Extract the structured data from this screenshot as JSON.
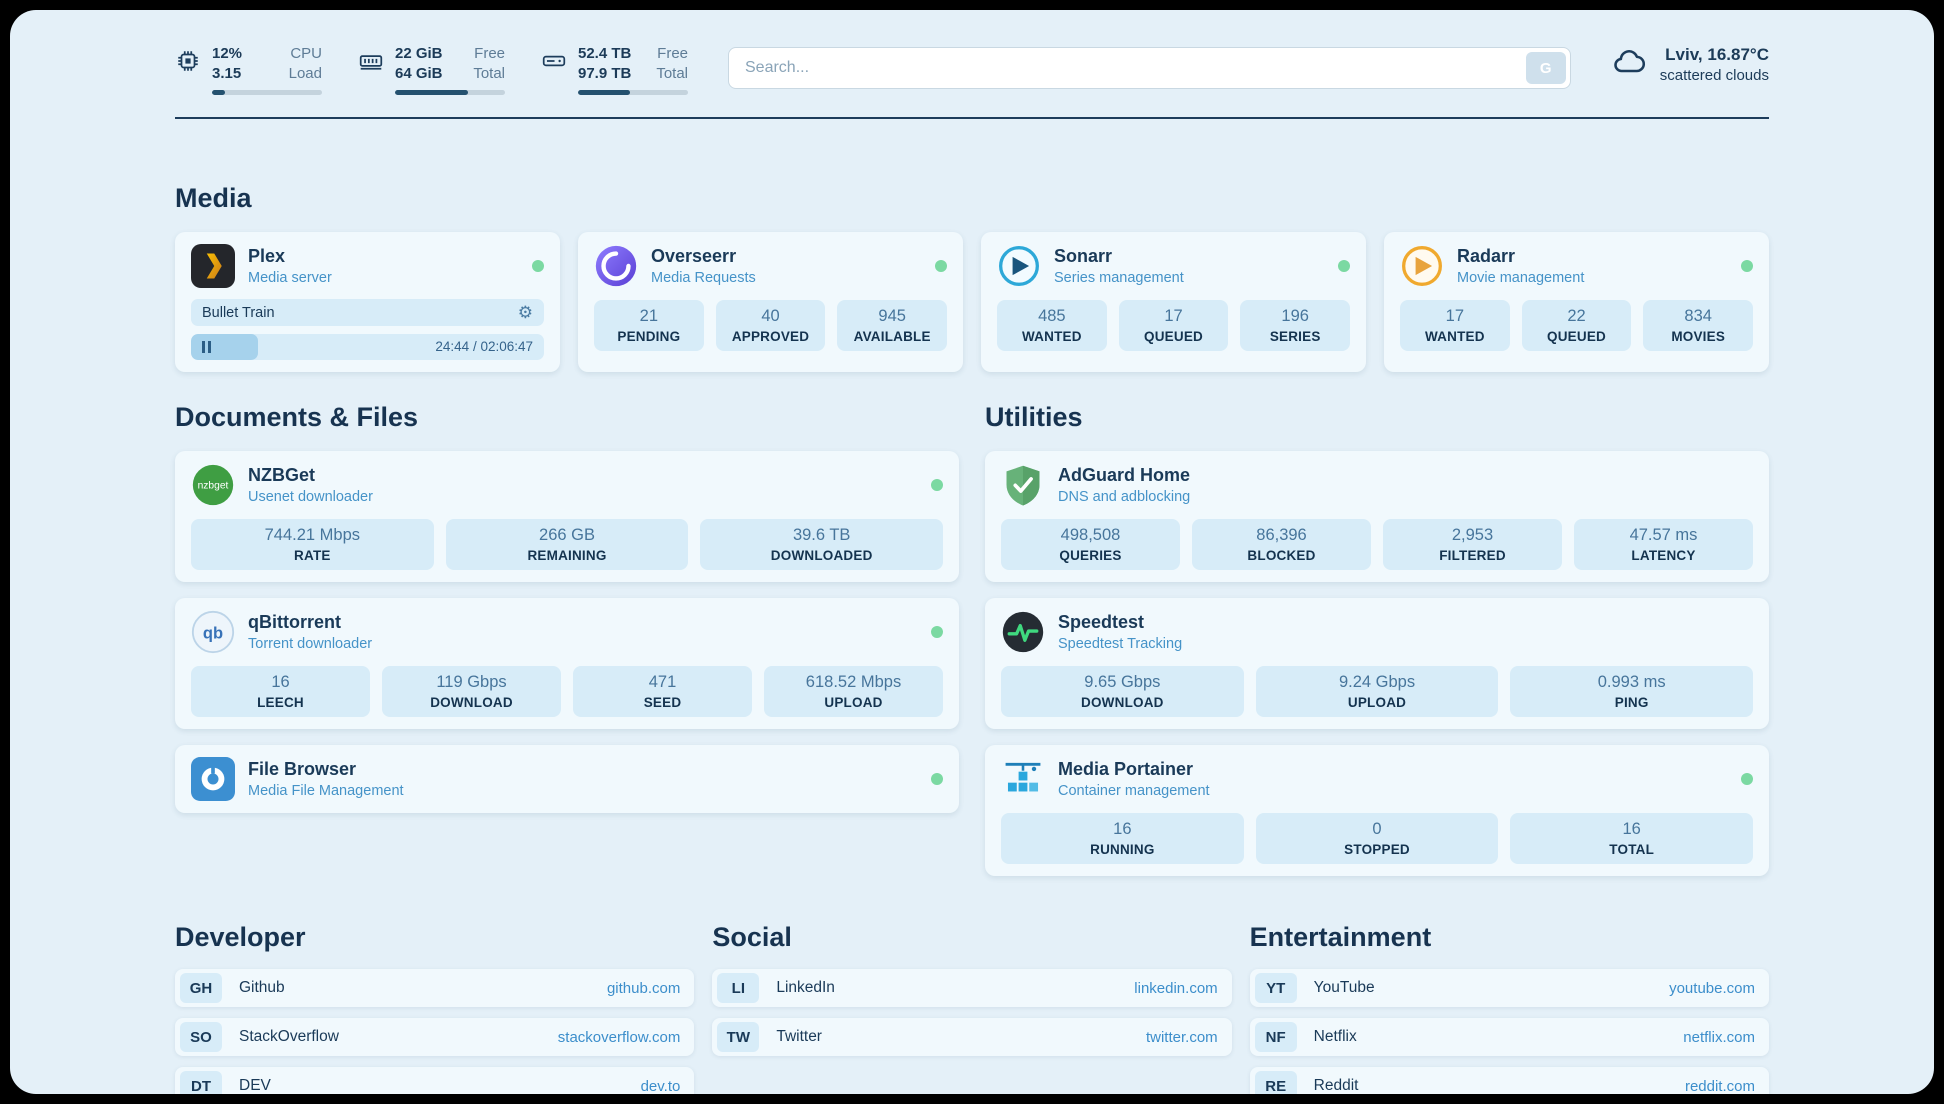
{
  "topbar": {
    "cpu": {
      "value1": "12%",
      "label1": "CPU",
      "value2": "3.15",
      "label2": "Load",
      "percent": 12
    },
    "ram": {
      "value1": "22 GiB",
      "label1": "Free",
      "value2": "64 GiB",
      "label2": "Total",
      "percent": 66
    },
    "disk": {
      "value1": "52.4 TB",
      "label1": "Free",
      "value2": "97.9 TB",
      "label2": "Total",
      "percent": 47
    },
    "search": {
      "placeholder": "Search...",
      "button_label": "G"
    },
    "weather": {
      "location": "Lviv, 16.87°C",
      "condition": "scattered clouds"
    }
  },
  "icons": {
    "gear": "⚙"
  },
  "sections": {
    "media": "Media",
    "documents": "Documents & Files",
    "utilities": "Utilities"
  },
  "apps": {
    "plex": {
      "name": "Plex",
      "subtitle": "Media server",
      "now_playing": "Bullet Train",
      "time": "24:44 / 02:06:47",
      "progress_percent": 19
    },
    "overseerr": {
      "name": "Overseerr",
      "subtitle": "Media Requests",
      "stats": [
        {
          "value": "21",
          "label": "PENDING"
        },
        {
          "value": "40",
          "label": "APPROVED"
        },
        {
          "value": "945",
          "label": "AVAILABLE"
        }
      ]
    },
    "sonarr": {
      "name": "Sonarr",
      "subtitle": "Series management",
      "stats": [
        {
          "value": "485",
          "label": "WANTED"
        },
        {
          "value": "17",
          "label": "QUEUED"
        },
        {
          "value": "196",
          "label": "SERIES"
        }
      ]
    },
    "radarr": {
      "name": "Radarr",
      "subtitle": "Movie management",
      "stats": [
        {
          "value": "17",
          "label": "WANTED"
        },
        {
          "value": "22",
          "label": "QUEUED"
        },
        {
          "value": "834",
          "label": "MOVIES"
        }
      ]
    },
    "nzbget": {
      "name": "NZBGet",
      "subtitle": "Usenet downloader",
      "stats": [
        {
          "value": "744.21 Mbps",
          "label": "RATE"
        },
        {
          "value": "266 GB",
          "label": "REMAINING"
        },
        {
          "value": "39.6 TB",
          "label": "DOWNLOADED"
        }
      ]
    },
    "qbittorrent": {
      "name": "qBittorrent",
      "subtitle": "Torrent downloader",
      "stats": [
        {
          "value": "16",
          "label": "LEECH"
        },
        {
          "value": "119 Gbps",
          "label": "DOWNLOAD"
        },
        {
          "value": "471",
          "label": "SEED"
        },
        {
          "value": "618.52 Mbps",
          "label": "UPLOAD"
        }
      ]
    },
    "filebrowser": {
      "name": "File Browser",
      "subtitle": "Media File Management"
    },
    "adguard": {
      "name": "AdGuard Home",
      "subtitle": "DNS and adblocking",
      "stats": [
        {
          "value": "498,508",
          "label": "QUERIES"
        },
        {
          "value": "86,396",
          "label": "BLOCKED"
        },
        {
          "value": "2,953",
          "label": "FILTERED"
        },
        {
          "value": "47.57 ms",
          "label": "LATENCY"
        }
      ]
    },
    "speedtest": {
      "name": "Speedtest",
      "subtitle": "Speedtest Tracking",
      "stats": [
        {
          "value": "9.65 Gbps",
          "label": "DOWNLOAD"
        },
        {
          "value": "9.24 Gbps",
          "label": "UPLOAD"
        },
        {
          "value": "0.993 ms",
          "label": "PING"
        }
      ]
    },
    "portainer": {
      "name": "Media Portainer",
      "subtitle": "Container management",
      "stats": [
        {
          "value": "16",
          "label": "RUNNING"
        },
        {
          "value": "0",
          "label": "STOPPED"
        },
        {
          "value": "16",
          "label": "TOTAL"
        }
      ]
    }
  },
  "bookmarks": {
    "developer": {
      "title": "Developer",
      "items": [
        {
          "abbr": "GH",
          "name": "Github",
          "url": "github.com"
        },
        {
          "abbr": "SO",
          "name": "StackOverflow",
          "url": "stackoverflow.com"
        },
        {
          "abbr": "DT",
          "name": "DEV",
          "url": "dev.to"
        }
      ]
    },
    "social": {
      "title": "Social",
      "items": [
        {
          "abbr": "LI",
          "name": "LinkedIn",
          "url": "linkedin.com"
        },
        {
          "abbr": "TW",
          "name": "Twitter",
          "url": "twitter.com"
        }
      ]
    },
    "entertainment": {
      "title": "Entertainment",
      "items": [
        {
          "abbr": "YT",
          "name": "YouTube",
          "url": "youtube.com"
        },
        {
          "abbr": "NF",
          "name": "Netflix",
          "url": "netflix.com"
        },
        {
          "abbr": "RE",
          "name": "Reddit",
          "url": "reddit.com"
        }
      ]
    }
  }
}
